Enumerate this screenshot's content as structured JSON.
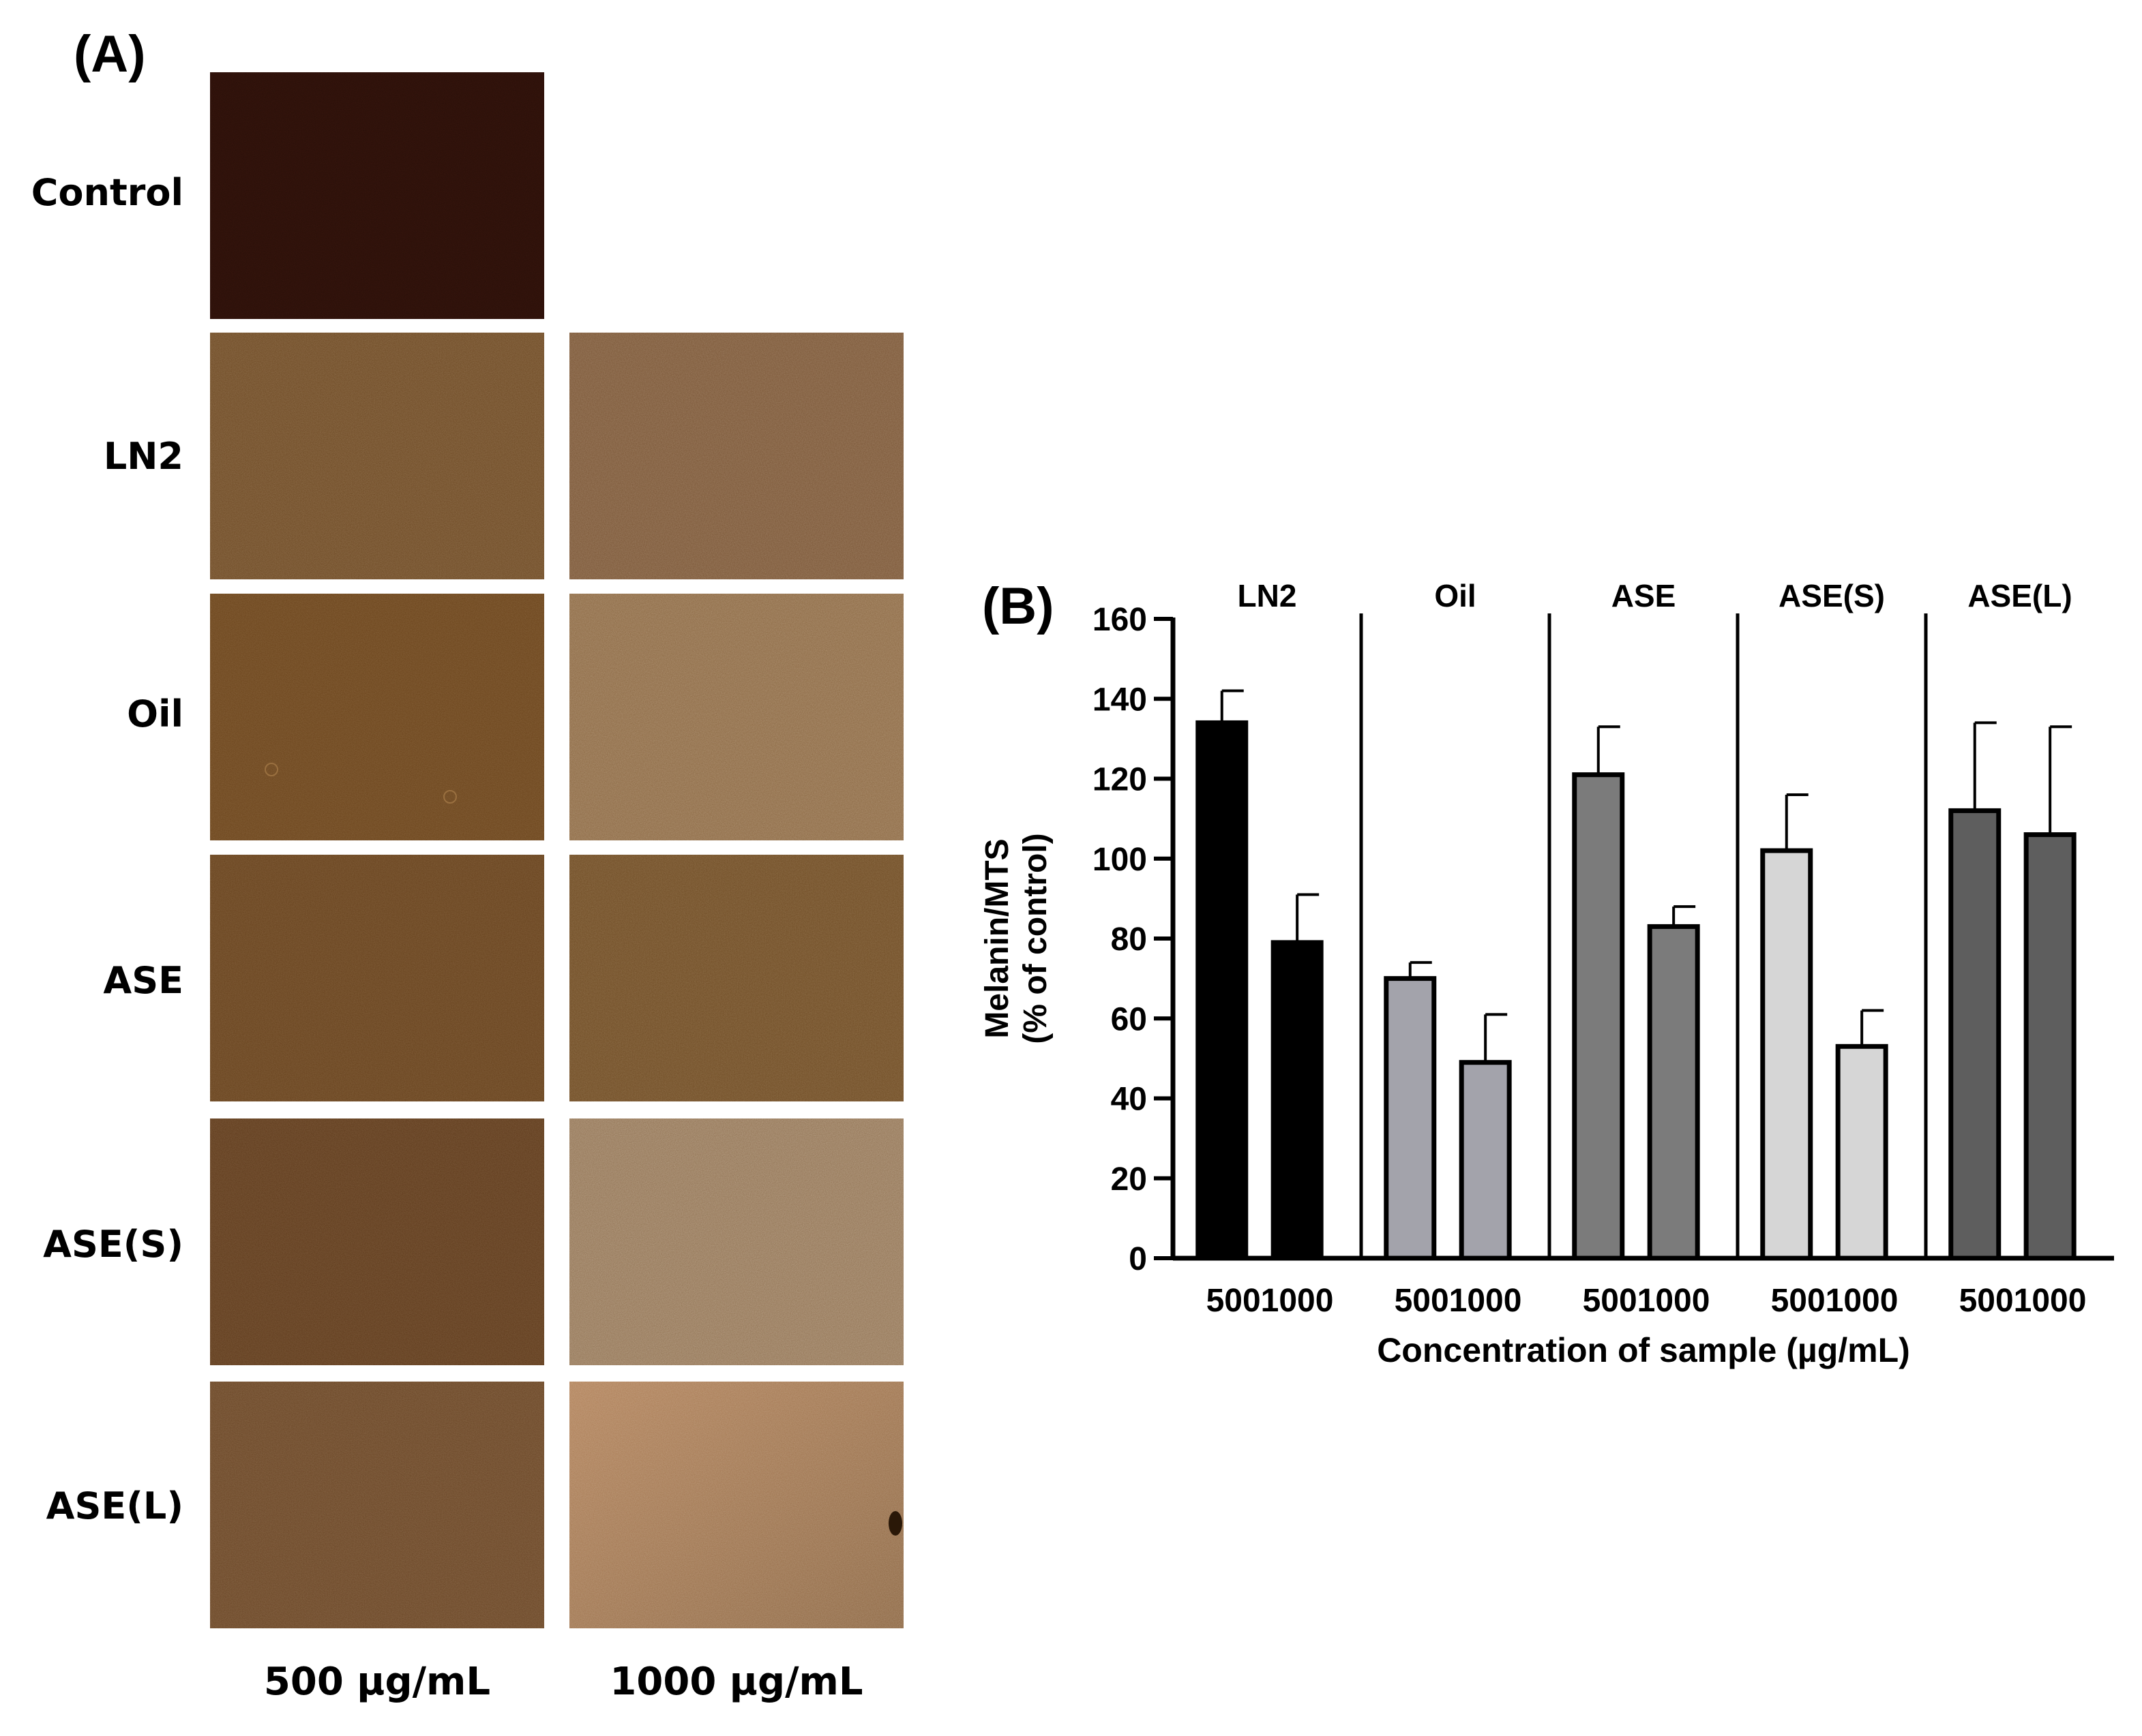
{
  "panel_a": {
    "letter": "(A)",
    "row_labels": [
      "Control",
      "LN2",
      "Oil",
      "ASE",
      "ASE(S)",
      "ASE(L)"
    ],
    "column_labels": [
      "500 μg/mL",
      "1000 μg/mL"
    ]
  },
  "panel_b": {
    "letter": "(B)"
  },
  "chart_data": {
    "type": "bar",
    "title": "",
    "ylabel_lines": [
      "Melanin/MTS",
      "(% of control)"
    ],
    "xlabel": "Concentration of sample (µg/mL)",
    "ylim": [
      0,
      160
    ],
    "yticks": [
      0,
      20,
      40,
      60,
      80,
      100,
      120,
      140,
      160
    ],
    "grid": false,
    "legend": "none",
    "concentrations": [
      "500",
      "1000"
    ],
    "groups": [
      {
        "name": "LN2",
        "color": "#000000",
        "values": [
          134,
          79
        ],
        "errors": [
          8,
          12
        ]
      },
      {
        "name": "Oil",
        "color": "#a3a3ab",
        "values": [
          70,
          49
        ],
        "errors": [
          4,
          12
        ]
      },
      {
        "name": "ASE",
        "color": "#7b7b7b",
        "values": [
          121,
          83
        ],
        "errors": [
          12,
          5
        ]
      },
      {
        "name": "ASE(S)",
        "color": "#d6d6d6",
        "values": [
          102,
          53
        ],
        "errors": [
          14,
          9
        ]
      },
      {
        "name": "ASE(L)",
        "color": "#5e5e5e",
        "values": [
          112,
          106
        ],
        "errors": [
          22,
          27
        ]
      }
    ]
  }
}
